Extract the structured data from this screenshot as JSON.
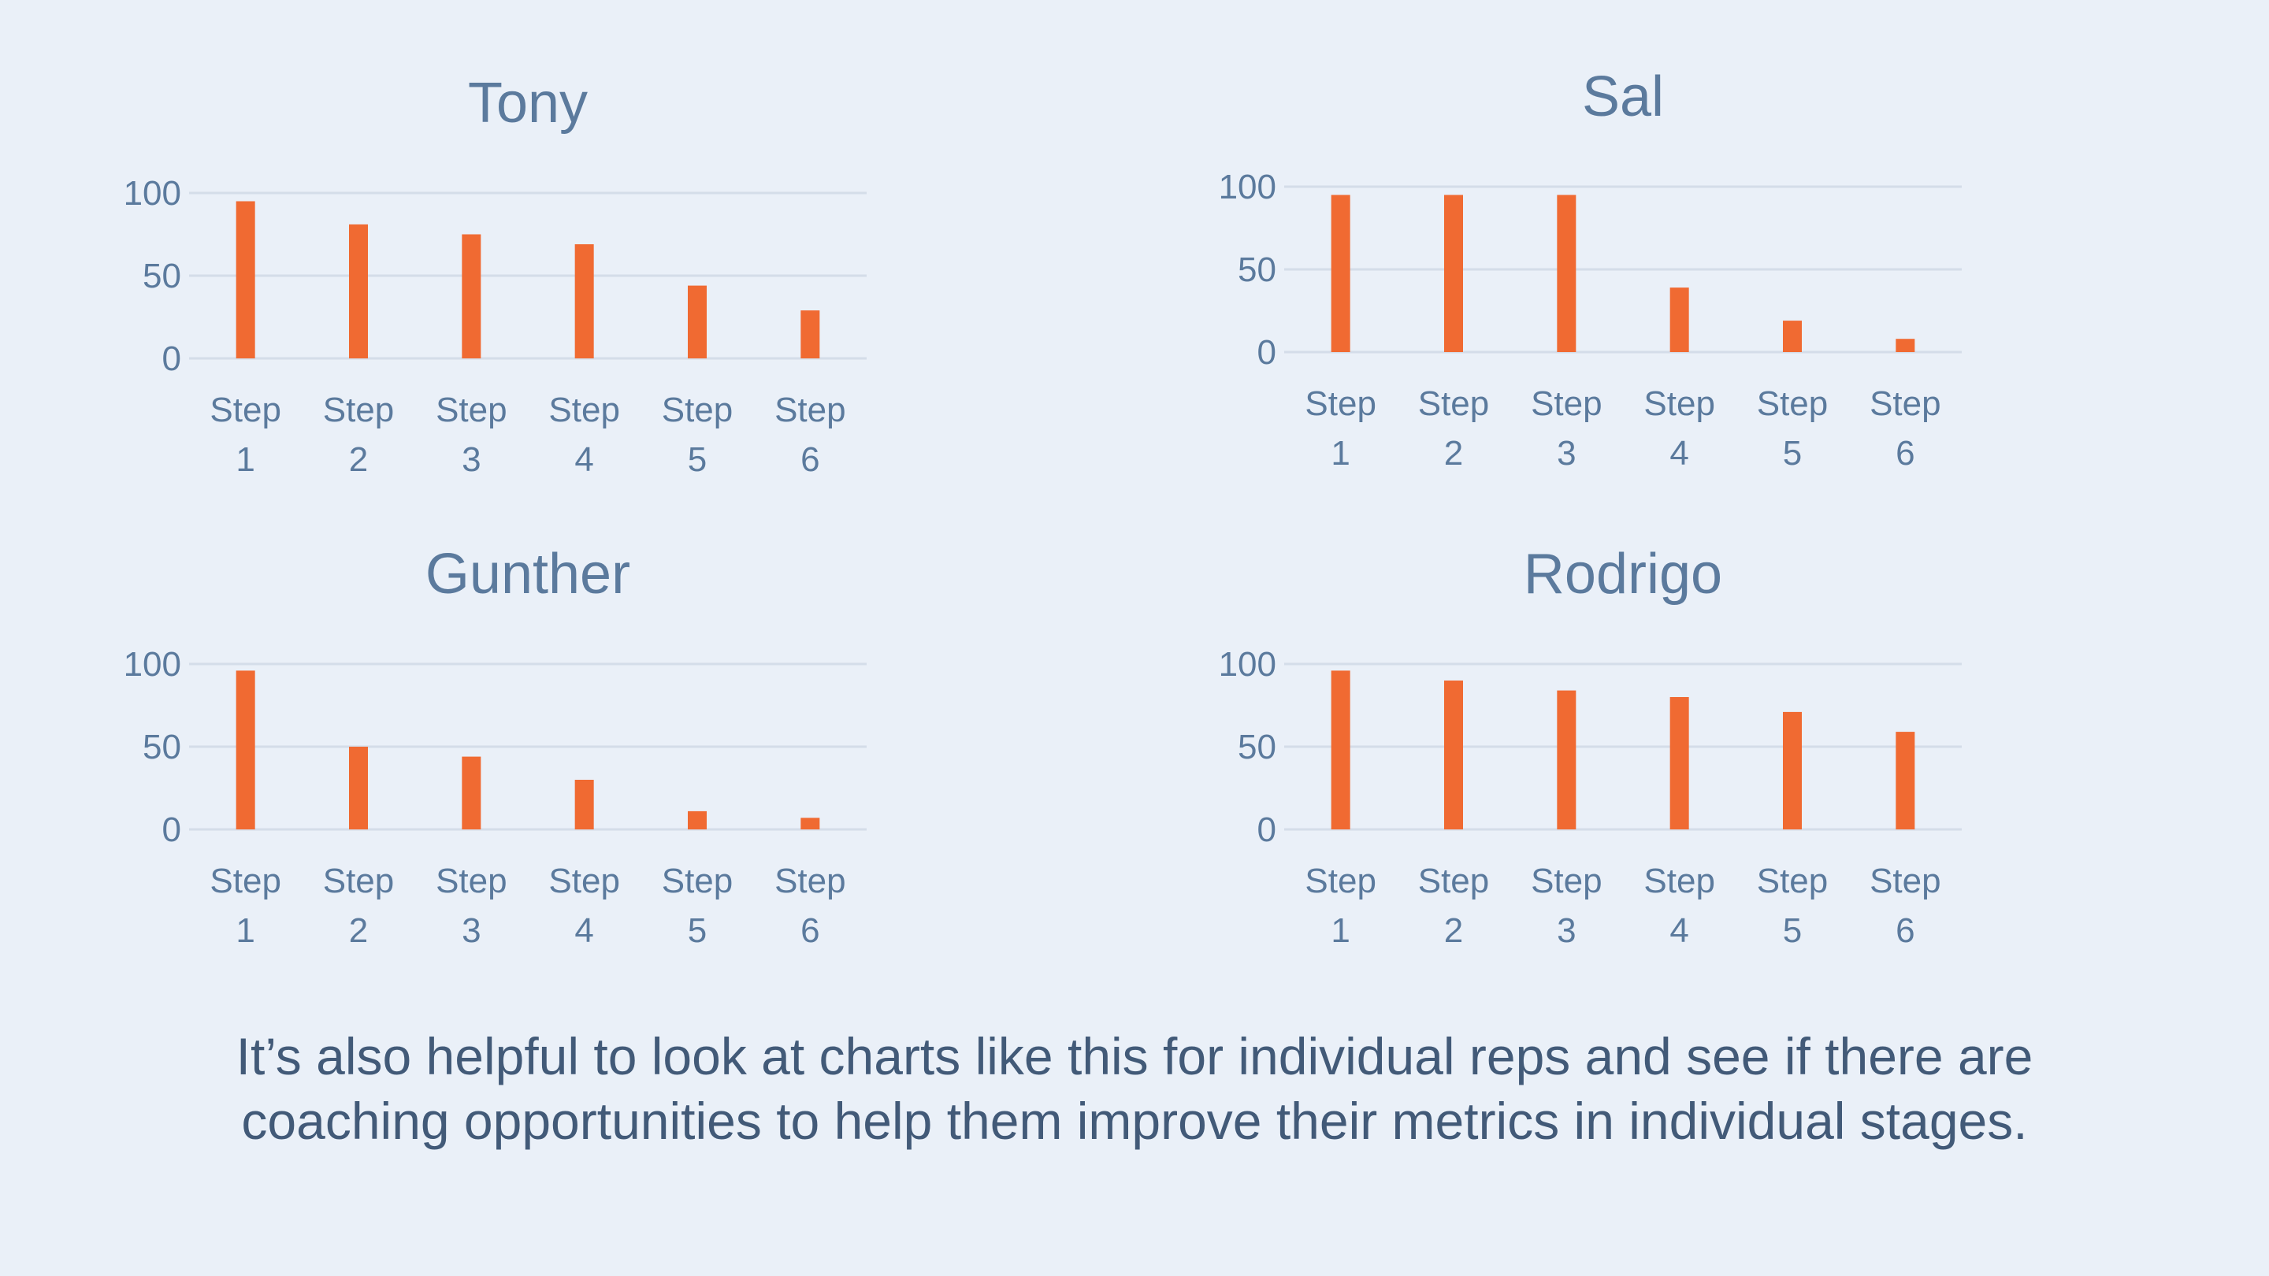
{
  "chart_data": [
    {
      "type": "bar",
      "title": "Tony",
      "categories": [
        [
          "Step",
          "1"
        ],
        [
          "Step",
          "2"
        ],
        [
          "Step",
          "3"
        ],
        [
          "Step",
          "4"
        ],
        [
          "Step",
          "5"
        ],
        [
          "Step",
          "6"
        ]
      ],
      "values": [
        95,
        81,
        75,
        69,
        44,
        29
      ],
      "ylim": [
        0,
        100
      ],
      "yticks": [
        "0",
        "50",
        "100"
      ],
      "grid": true,
      "bar_color": "#f06a32"
    },
    {
      "type": "bar",
      "title": "Sal",
      "categories": [
        [
          "Step",
          "1"
        ],
        [
          "Step",
          "2"
        ],
        [
          "Step",
          "3"
        ],
        [
          "Step",
          "4"
        ],
        [
          "Step",
          "5"
        ],
        [
          "Step",
          "6"
        ]
      ],
      "values": [
        95,
        95,
        95,
        39,
        19,
        8
      ],
      "ylim": [
        0,
        100
      ],
      "yticks": [
        "0",
        "50",
        "100"
      ],
      "grid": true,
      "bar_color": "#f06a32"
    },
    {
      "type": "bar",
      "title": "Gunther",
      "categories": [
        [
          "Step",
          "1"
        ],
        [
          "Step",
          "2"
        ],
        [
          "Step",
          "3"
        ],
        [
          "Step",
          "4"
        ],
        [
          "Step",
          "5"
        ],
        [
          "Step",
          "6"
        ]
      ],
      "values": [
        96,
        50,
        44,
        30,
        11,
        7
      ],
      "ylim": [
        0,
        100
      ],
      "yticks": [
        "0",
        "50",
        "100"
      ],
      "grid": true,
      "bar_color": "#f06a32"
    },
    {
      "type": "bar",
      "title": "Rodrigo",
      "categories": [
        [
          "Step",
          "1"
        ],
        [
          "Step",
          "2"
        ],
        [
          "Step",
          "3"
        ],
        [
          "Step",
          "4"
        ],
        [
          "Step",
          "5"
        ],
        [
          "Step",
          "6"
        ]
      ],
      "values": [
        96,
        90,
        84,
        80,
        71,
        59
      ],
      "ylim": [
        0,
        100
      ],
      "yticks": [
        "0",
        "50",
        "100"
      ],
      "grid": true,
      "bar_color": "#f06a32"
    }
  ],
  "caption": {
    "line1": "It’s also helpful to look at charts like this for individual reps and see if there are",
    "line2": "coaching opportunities to help them improve their metrics in individual stages."
  }
}
